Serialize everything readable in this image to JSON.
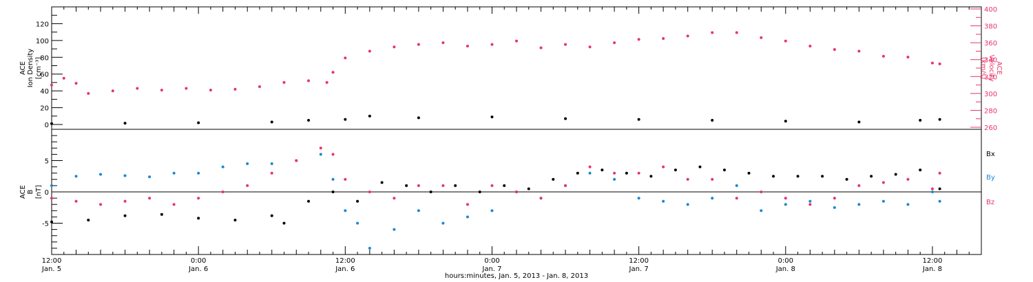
{
  "colors": {
    "black": "#000000",
    "pink": "#e8336a",
    "blue": "#1a86d6"
  },
  "xaxis": {
    "title": "hours:minutes, Jan. 5, 2013 - Jan. 8, 2013",
    "ticks": [
      {
        "time": "12:00",
        "day": "Jan. 5"
      },
      {
        "time": "0:00",
        "day": "Jan. 6"
      },
      {
        "time": "12:00",
        "day": "Jan. 6"
      },
      {
        "time": "0:00",
        "day": "Jan. 7"
      },
      {
        "time": "12:00",
        "day": "Jan. 7"
      },
      {
        "time": "0:00",
        "day": "Jan. 8"
      },
      {
        "time": "12:00",
        "day": "Jan. 8"
      }
    ]
  },
  "chart_data": [
    {
      "type": "scatter",
      "panel": "top",
      "xlabel": "hours:minutes, Jan. 5, 2013 - Jan. 8, 2013",
      "xlim_hours_from_jan5_0000": [
        12,
        88
      ],
      "left_axis": {
        "label_lines": [
          "ACE",
          "Ion Density",
          "[cm⁻³]"
        ],
        "ylim": [
          0,
          140
        ],
        "ticks": [
          0,
          20,
          40,
          60,
          80,
          100,
          120
        ]
      },
      "right_axis": {
        "label_lines": [
          "ACE",
          "Velocity",
          "[km/s]"
        ],
        "ylim": [
          260,
          400
        ],
        "ticks": [
          260,
          280,
          300,
          320,
          340,
          360,
          380,
          400
        ],
        "color": "#e8336a"
      },
      "series": [
        {
          "axis": "left",
          "color": "#000000",
          "x": [
            12,
            18,
            24,
            30,
            33,
            36,
            38,
            42,
            48,
            54,
            60,
            66,
            72,
            78,
            83,
            84.6
          ],
          "values": [
            1,
            1.5,
            2,
            3,
            5,
            6,
            10,
            8,
            9,
            7,
            6,
            5,
            4,
            3,
            5,
            6
          ]
        },
        {
          "axis": "right",
          "color": "#e8336a",
          "x": [
            12,
            13,
            14,
            15,
            17,
            19,
            21,
            23,
            25,
            27,
            29,
            31,
            33,
            34.5,
            35,
            36,
            38,
            40,
            42,
            44,
            46,
            48,
            50,
            52,
            54,
            56,
            58,
            60,
            62,
            64,
            66,
            68,
            70,
            72,
            74,
            76,
            78,
            80,
            82,
            84,
            84.6
          ],
          "values": [
            310,
            318,
            312,
            300,
            303,
            306,
            304,
            306,
            304,
            305,
            308,
            313,
            315,
            313,
            325,
            342,
            350,
            355,
            358,
            360,
            356,
            358,
            362,
            354,
            358,
            355,
            360,
            364,
            365,
            368,
            372,
            372,
            366,
            362,
            356,
            352,
            350,
            344,
            343,
            336,
            335
          ]
        }
      ]
    },
    {
      "type": "scatter",
      "panel": "bottom",
      "xlabel": "hours:minutes, Jan. 5, 2013 - Jan. 8, 2013",
      "xlim_hours_from_jan5_0000": [
        12,
        88
      ],
      "ylabel_lines": [
        "ACE",
        "B",
        "[nT]"
      ],
      "ylim": [
        -10,
        10
      ],
      "ticks": [
        -5,
        0,
        5
      ],
      "series": [
        {
          "name": "Bx",
          "color": "#000000",
          "x": [
            12,
            15,
            18,
            21,
            24,
            27,
            30,
            31,
            33,
            35,
            37,
            39,
            41,
            43,
            45,
            47,
            49,
            51,
            53,
            55,
            57,
            59,
            61,
            63,
            65,
            67,
            69,
            71,
            73,
            75,
            77,
            79,
            81,
            83,
            84.6
          ],
          "values": [
            -4.8,
            -4.5,
            -3.8,
            -3.6,
            -4.2,
            -4.5,
            -3.8,
            -5,
            -1.5,
            0,
            -1.5,
            1.5,
            1,
            0,
            1,
            0,
            1,
            0.5,
            2,
            3,
            3.5,
            3,
            2.5,
            3.5,
            4,
            3.5,
            3,
            2.5,
            2.5,
            2.5,
            2,
            2.5,
            2.8,
            3.5,
            0.5
          ]
        },
        {
          "name": "By",
          "color": "#1a86d6",
          "x": [
            12,
            14,
            16,
            18,
            20,
            22,
            24,
            26,
            28,
            30,
            32,
            34,
            35,
            36,
            37,
            38,
            40,
            42,
            44,
            46,
            48,
            50,
            52,
            54,
            56,
            58,
            60,
            62,
            64,
            66,
            68,
            70,
            72,
            74,
            76,
            78,
            80,
            82,
            84,
            84.6
          ],
          "values": [
            1,
            2.5,
            2.8,
            2.6,
            2.4,
            3,
            3,
            4,
            4.5,
            4.5,
            5,
            6,
            2,
            -3,
            -5,
            -9,
            -6,
            -3,
            -5,
            -4,
            -3,
            0,
            -1,
            1,
            3,
            2,
            -1,
            -1.5,
            -2,
            -1,
            1,
            -3,
            -2,
            -1.5,
            -2.5,
            -2,
            -1.5,
            -2,
            0,
            -1.5
          ]
        },
        {
          "name": "Bz",
          "color": "#e8336a",
          "x": [
            12,
            14,
            16,
            18,
            20,
            22,
            24,
            26,
            28,
            30,
            32,
            34,
            35,
            36,
            38,
            40,
            42,
            44,
            46,
            48,
            50,
            52,
            54,
            56,
            58,
            60,
            62,
            64,
            66,
            68,
            70,
            72,
            74,
            76,
            78,
            80,
            82,
            84,
            84.6
          ],
          "values": [
            -1,
            -1.5,
            -2,
            -1.5,
            -1,
            -2,
            -1,
            0,
            1,
            3,
            5,
            7,
            6,
            2,
            0,
            -1,
            1,
            1,
            -2,
            1,
            0,
            -1,
            1,
            4,
            3,
            3,
            4,
            2,
            2,
            -1,
            0,
            -1,
            -2,
            -1,
            1,
            1.5,
            2,
            0.5,
            3
          ]
        }
      ]
    }
  ]
}
